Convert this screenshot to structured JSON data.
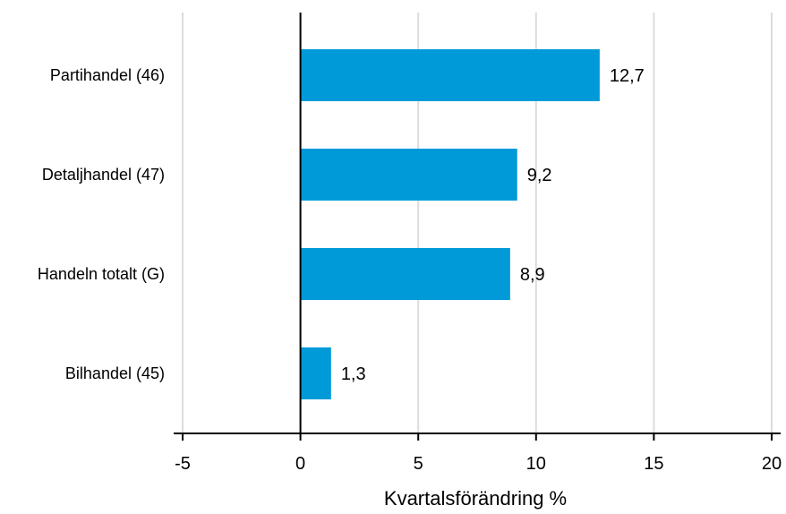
{
  "chart_data": {
    "type": "bar",
    "orientation": "horizontal",
    "categories": [
      "Partihandel (46)",
      "Detaljhandel (47)",
      "Handeln totalt (G)",
      "Bilhandel (45)"
    ],
    "values": [
      12.7,
      9.2,
      8.9,
      1.3
    ],
    "value_labels": [
      "12,7",
      "9,2",
      "8,9",
      "1,3"
    ],
    "xlabel": "Kvartalsförändring %",
    "ylabel": "",
    "xlim": [
      -5,
      20
    ],
    "xticks": [
      -5,
      0,
      5,
      10,
      15,
      20
    ],
    "xtick_labels": [
      "-5",
      "0",
      "5",
      "10",
      "15",
      "20"
    ],
    "grid": "vertical",
    "legend": "none",
    "colors": {
      "bar": "#009ad8",
      "grid": "#dcdcdc",
      "axis": "#000000"
    }
  }
}
